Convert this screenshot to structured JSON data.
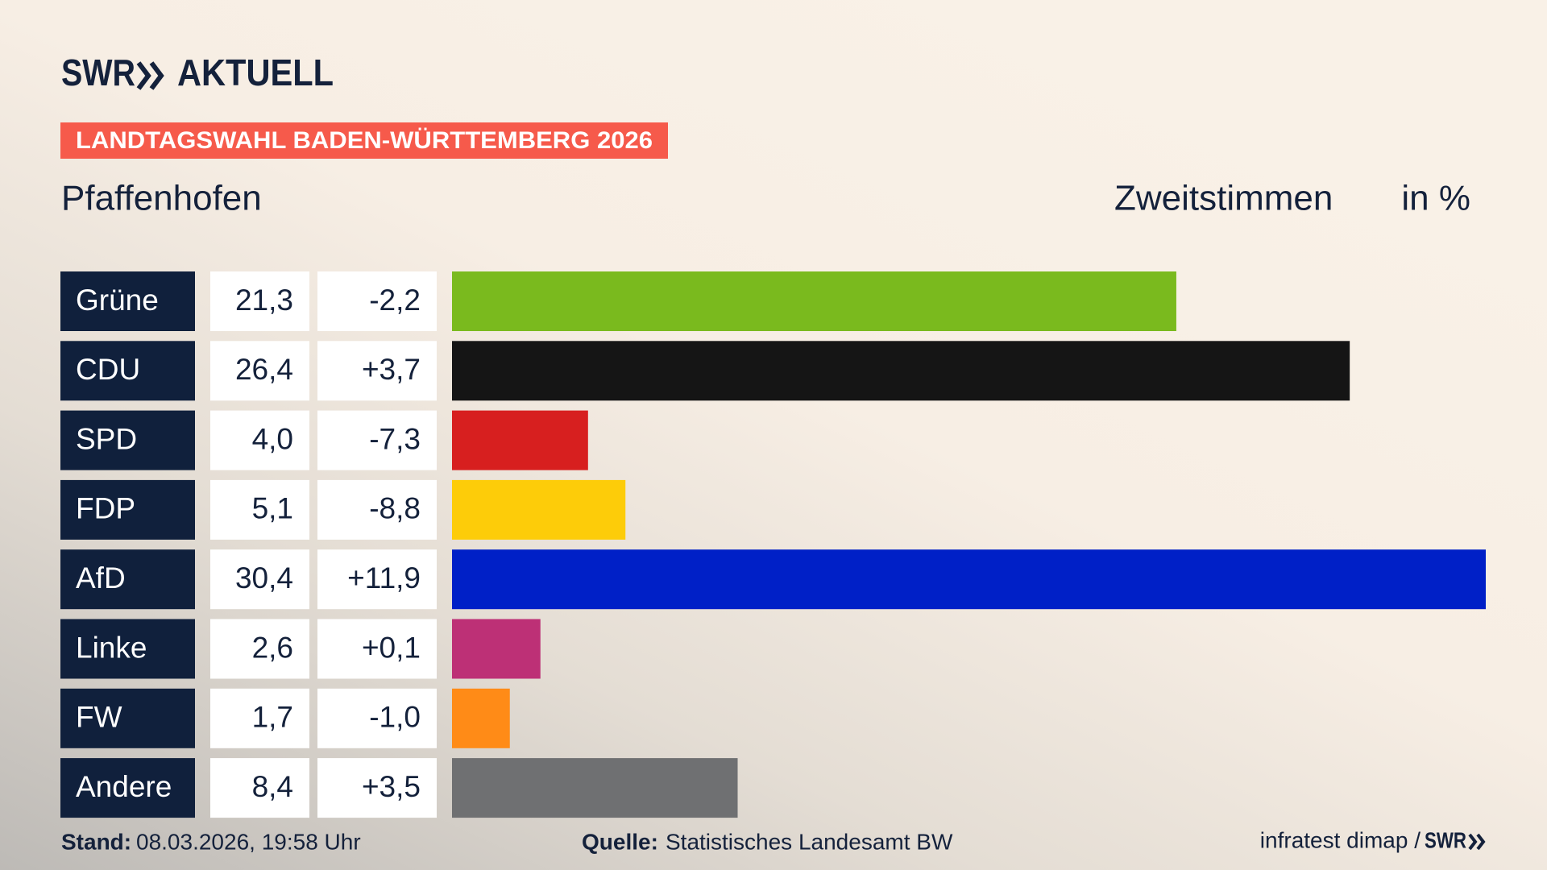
{
  "chart_data": {
    "type": "bar",
    "logo": "SWR",
    "logo_sub": "AKTUELL",
    "title": "LANDTAGSWAHL BADEN-WÜRTTEMBERG 2026",
    "subtitle": "Pfaffenhofen",
    "measure": "Zweitstimmen",
    "unit": "in %",
    "categories": [
      "Grüne",
      "CDU",
      "SPD",
      "FDP",
      "AfD",
      "Linke",
      "FW",
      "Andere"
    ],
    "series": [
      {
        "values": [
          21.3,
          26.4,
          4.0,
          5.1,
          30.4,
          2.6,
          1.7,
          8.4
        ],
        "value_labels": [
          "21,3",
          "26,4",
          "4,0",
          "5,1",
          "30,4",
          "2,6",
          "1,7",
          "8,4"
        ],
        "colors": [
          "#7aba1e",
          "#151515",
          "#d71f1f",
          "#fdcc09",
          "#0020c7",
          "#bd3076",
          "#ff8b17",
          "#6f7072"
        ]
      }
    ],
    "changes": [
      "-2,2",
      "+3,7",
      "-7,3",
      "-8,8",
      "+11,9",
      "+0,1",
      "-1,0",
      "+3,5"
    ],
    "footer": {
      "stand_label": "Stand:",
      "stand": "08.03.2026, 19:58 Uhr",
      "source_label": "Quelle:",
      "source": "Statistisches Landesamt BW",
      "credit": "infratest dimap /",
      "credit_logo": "SWR"
    }
  }
}
